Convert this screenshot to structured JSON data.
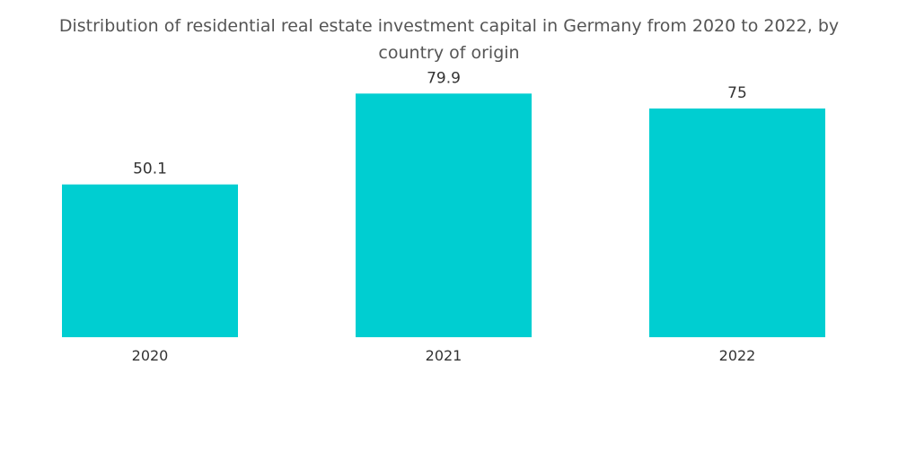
{
  "chart_data": {
    "type": "bar",
    "title_lines": [
      "Distribution of residential real estate investment capital in Germany from 2020 to 2022, by",
      "country of origin"
    ],
    "categories": [
      "2020",
      "2021",
      "2022"
    ],
    "values": [
      50.1,
      79.9,
      75
    ],
    "value_labels": [
      "50.1",
      "79.9",
      "75"
    ],
    "xlabel": "",
    "ylabel": "",
    "ylim": [
      0,
      100
    ],
    "grid": false,
    "bar_color": "#00CED1"
  }
}
